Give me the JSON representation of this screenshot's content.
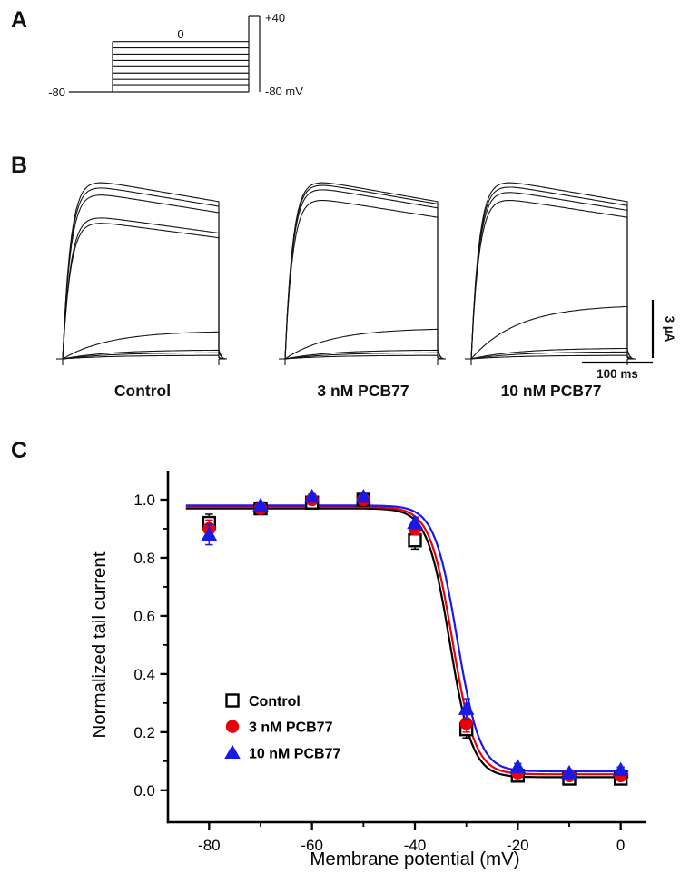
{
  "panel_a": {
    "label": "A",
    "protocol": {
      "step_top_label": "0",
      "peak_label": "+40",
      "holding_label": "-80",
      "return_label": "-80 mV",
      "holding_mv": -80,
      "peak_mv": 40,
      "step_levels_mv": [
        0,
        -10,
        -20,
        -30,
        -40,
        -50,
        -60,
        -70
      ]
    }
  },
  "panel_b": {
    "label": "B",
    "groups": [
      {
        "label": "Control",
        "amplitudes": [
          1.0,
          0.97,
          0.93,
          0.8,
          0.77,
          0.155,
          0.05,
          0.035,
          0.02
        ]
      },
      {
        "label": "3 nM PCB77",
        "amplitudes": [
          1.0,
          0.985,
          0.96,
          0.9,
          0.17,
          0.05,
          0.035,
          0.02
        ]
      },
      {
        "label": "10 nM PCB77",
        "amplitudes": [
          1.0,
          0.975,
          0.945,
          0.9,
          0.3,
          0.06,
          0.04,
          0.02
        ]
      }
    ],
    "scale": {
      "current": "3 µA",
      "time": "100 ms"
    }
  },
  "panel_c": {
    "label": "C"
  },
  "chart_data": {
    "type": "scatter",
    "x": [
      -80,
      -70,
      -60,
      -50,
      -40,
      -30,
      -20,
      -10,
      0
    ],
    "series": [
      {
        "name": "Control",
        "marker": "open-square",
        "color": "#000000",
        "values": [
          0.92,
          0.97,
          0.99,
          1.0,
          0.86,
          0.21,
          0.05,
          0.04,
          0.04
        ],
        "errors": [
          0.03,
          0.012,
          0.01,
          0.01,
          0.03,
          0.03,
          0.01,
          0.008,
          0.008
        ],
        "fit": {
          "top": 0.97,
          "bottom": 0.045,
          "v_half": -33.2,
          "slope": 2.2
        }
      },
      {
        "name": "3 nM PCB77",
        "marker": "filled-circle",
        "color": "#e8000b",
        "values": [
          0.9,
          0.97,
          1.0,
          1.0,
          0.9,
          0.23,
          0.06,
          0.05,
          0.05
        ],
        "errors": [
          0.03,
          0.015,
          0.01,
          0.01,
          0.02,
          0.03,
          0.01,
          0.008,
          0.008
        ],
        "fit": {
          "top": 0.975,
          "bottom": 0.055,
          "v_half": -32.7,
          "slope": 2.2
        }
      },
      {
        "name": "10 nM PCB77",
        "marker": "filled-triangle",
        "color": "#1a1ae8",
        "values": [
          0.88,
          0.98,
          1.01,
          1.01,
          0.92,
          0.28,
          0.08,
          0.06,
          0.07
        ],
        "errors": [
          0.035,
          0.012,
          0.01,
          0.01,
          0.02,
          0.035,
          0.012,
          0.01,
          0.01
        ],
        "fit": {
          "top": 0.98,
          "bottom": 0.065,
          "v_half": -31.8,
          "slope": 2.2
        }
      }
    ],
    "xlabel": "Membrane potential (mV)",
    "ylabel": "Normalized tail current",
    "xlim": [
      -88,
      5
    ],
    "ylim": [
      -0.11,
      1.1
    ],
    "xticks": [
      -80,
      -60,
      -40,
      -20,
      0
    ],
    "xminor_step": 10,
    "yticks": [
      0.0,
      0.2,
      0.4,
      0.6,
      0.8,
      1.0
    ],
    "yminor_step": 0.1,
    "legend": [
      "Control",
      "3 nM PCB77",
      "10 nM PCB77"
    ],
    "legend_position": "inside-lower-left",
    "grid": false
  }
}
